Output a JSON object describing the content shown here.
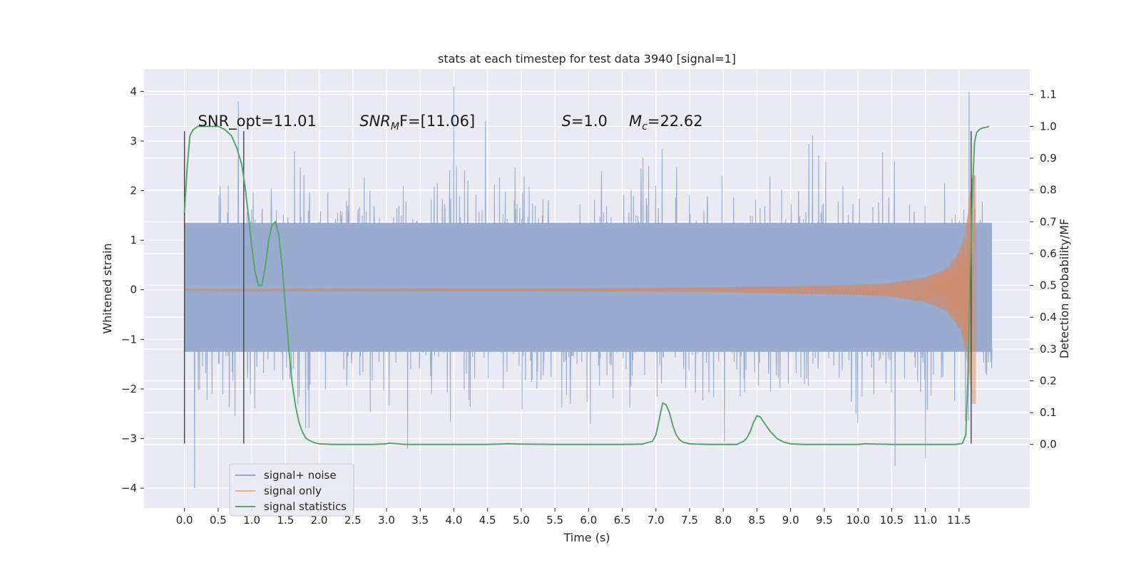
{
  "chart_data": {
    "type": "line",
    "title": "stats at each timestep for test data 3940 [signal=1]",
    "xlabel": "Time (s)",
    "ylabel": "Whitened strain",
    "y2label": "Detection probability/MF",
    "xlim": [
      -0.6,
      12.55
    ],
    "ylim": [
      -4.4,
      4.45
    ],
    "y2lim": [
      -0.2,
      1.18
    ],
    "x_ticks": [
      0.0,
      0.5,
      1.0,
      1.5,
      2.0,
      2.5,
      3.0,
      3.5,
      4.0,
      4.5,
      5.0,
      5.5,
      6.0,
      6.5,
      7.0,
      7.5,
      8.0,
      8.5,
      9.0,
      9.5,
      10.0,
      10.5,
      11.0,
      11.5
    ],
    "x_tick_labels": [
      "0.0",
      "0.5",
      "1.0",
      "1.5",
      "2.0",
      "2.5",
      "3.0",
      "3.5",
      "4.0",
      "4.5",
      "5.0",
      "5.5",
      "6.0",
      "6.5",
      "7.0",
      "7.5",
      "8.0",
      "8.5",
      "9.0",
      "9.5",
      "10.0",
      "10.5",
      "11.0",
      "11.5"
    ],
    "y_ticks": [
      -4,
      -3,
      -2,
      -1,
      0,
      1,
      2,
      3,
      4
    ],
    "y_tick_labels": [
      "−4",
      "−3",
      "−2",
      "−1",
      "0",
      "1",
      "2",
      "3",
      "4"
    ],
    "y2_ticks": [
      0.0,
      0.1,
      0.2,
      0.3,
      0.4,
      0.5,
      0.6,
      0.7,
      0.8,
      0.9,
      1.0,
      1.1
    ],
    "y2_tick_labels": [
      "0.0",
      "0.1",
      "0.2",
      "0.3",
      "0.4",
      "0.5",
      "0.6",
      "0.7",
      "0.8",
      "0.9",
      "1.0",
      "1.1"
    ],
    "grid": true,
    "legend_position": "lower-left",
    "series": [
      {
        "name": "signal+ noise",
        "color": "#4c72b0",
        "axis": "left",
        "kind": "noise-band",
        "x_range": [
          0.0,
          11.99
        ],
        "core_band": [
          -1.25,
          1.35
        ],
        "envelope_max_approx": [
          2.9,
          -2.6
        ],
        "extreme_peaks": [
          {
            "x": 0.15,
            "y": -4.0
          },
          {
            "x": 0.8,
            "y": 3.8
          },
          {
            "x": 4.0,
            "y": 4.1
          },
          {
            "x": 11.65,
            "y": 4.0
          },
          {
            "x": 10.55,
            "y": -3.55
          },
          {
            "x": 11.0,
            "y": -3.4
          }
        ]
      },
      {
        "name": "signal only",
        "color": "#dd8452",
        "axis": "left",
        "kind": "chirp",
        "x_range": [
          0.0,
          11.75
        ],
        "merger_time": 11.7,
        "envelope": [
          {
            "x": 0.0,
            "y": 0.02
          },
          {
            "x": 6.0,
            "y": 0.03
          },
          {
            "x": 8.0,
            "y": 0.05
          },
          {
            "x": 10.0,
            "y": 0.1
          },
          {
            "x": 10.5,
            "y": 0.14
          },
          {
            "x": 11.0,
            "y": 0.25
          },
          {
            "x": 11.3,
            "y": 0.42
          },
          {
            "x": 11.5,
            "y": 0.75
          },
          {
            "x": 11.62,
            "y": 1.3
          },
          {
            "x": 11.67,
            "y": 2.3
          }
        ]
      },
      {
        "name": "signal statistics",
        "color": "#55a868",
        "axis": "right",
        "x": [
          0.0,
          0.04,
          0.08,
          0.13,
          0.2,
          0.3,
          0.4,
          0.5,
          0.6,
          0.7,
          0.78,
          0.85,
          0.9,
          0.95,
          1.0,
          1.05,
          1.1,
          1.15,
          1.2,
          1.25,
          1.3,
          1.35,
          1.4,
          1.45,
          1.5,
          1.55,
          1.6,
          1.65,
          1.7,
          1.75,
          1.8,
          1.85,
          1.9,
          1.95,
          2.0,
          2.1,
          2.2,
          2.4,
          2.6,
          2.8,
          3.0,
          3.05,
          3.1,
          3.2,
          3.3,
          3.5,
          4.0,
          4.5,
          4.8,
          5.0,
          5.5,
          6.0,
          6.5,
          6.8,
          6.95,
          7.0,
          7.05,
          7.1,
          7.15,
          7.2,
          7.25,
          7.3,
          7.35,
          7.4,
          7.5,
          7.6,
          7.8,
          8.0,
          8.2,
          8.3,
          8.35,
          8.4,
          8.45,
          8.5,
          8.55,
          8.6,
          8.7,
          8.8,
          8.9,
          9.0,
          9.2,
          9.5,
          10.0,
          10.1,
          10.5,
          11.0,
          11.3,
          11.45,
          11.55,
          11.6,
          11.63,
          11.66,
          11.7,
          11.73,
          11.76,
          11.8,
          11.85,
          11.9,
          11.95
        ],
        "values": [
          0.73,
          0.87,
          0.97,
          0.99,
          1.0,
          1.0,
          1.0,
          1.0,
          0.99,
          0.97,
          0.93,
          0.88,
          0.81,
          0.72,
          0.62,
          0.54,
          0.5,
          0.5,
          0.56,
          0.64,
          0.69,
          0.7,
          0.66,
          0.56,
          0.43,
          0.3,
          0.19,
          0.12,
          0.07,
          0.04,
          0.02,
          0.013,
          0.008,
          0.004,
          0.002,
          0.001,
          0.0,
          0.0,
          0.0,
          0.0,
          0.002,
          0.004,
          0.003,
          0.001,
          0.0,
          0.0,
          0.0,
          0.0,
          0.002,
          0.001,
          0.0,
          0.0,
          0.0,
          0.001,
          0.01,
          0.03,
          0.08,
          0.13,
          0.125,
          0.1,
          0.06,
          0.03,
          0.015,
          0.007,
          0.002,
          0.001,
          0.0,
          0.0,
          0.0,
          0.01,
          0.02,
          0.04,
          0.07,
          0.09,
          0.086,
          0.07,
          0.04,
          0.018,
          0.007,
          0.002,
          0.0,
          0.0,
          0.0,
          0.002,
          0.0,
          0.0,
          0.0,
          0.0,
          0.003,
          0.03,
          0.2,
          0.5,
          0.8,
          0.95,
          0.98,
          0.99,
          0.995,
          0.997,
          1.0
        ]
      }
    ],
    "vertical_lines": [
      {
        "x": 0.0,
        "y_range": [
          -3.1,
          3.2
        ],
        "color": "#444444"
      },
      {
        "x": 0.88,
        "y_range": [
          -3.1,
          3.2
        ],
        "color": "#444444"
      },
      {
        "x": 11.68,
        "y_range": [
          -3.1,
          3.2
        ],
        "color": "#444444"
      }
    ],
    "annotations": [
      {
        "text": "SNR_opt=11.01",
        "x": 0.2,
        "y": 3.3
      },
      {
        "math": true,
        "main": "SNR",
        "sub": "M",
        "rest": "F=[11.06]",
        "x": 2.6,
        "y": 3.3
      },
      {
        "math": true,
        "main": "S",
        "sub": "",
        "rest": "=1.0",
        "x": 5.6,
        "y": 3.3
      },
      {
        "math": true,
        "main": "M",
        "sub": "c",
        "rest": "=22.62",
        "x": 6.6,
        "y": 3.3
      }
    ]
  }
}
